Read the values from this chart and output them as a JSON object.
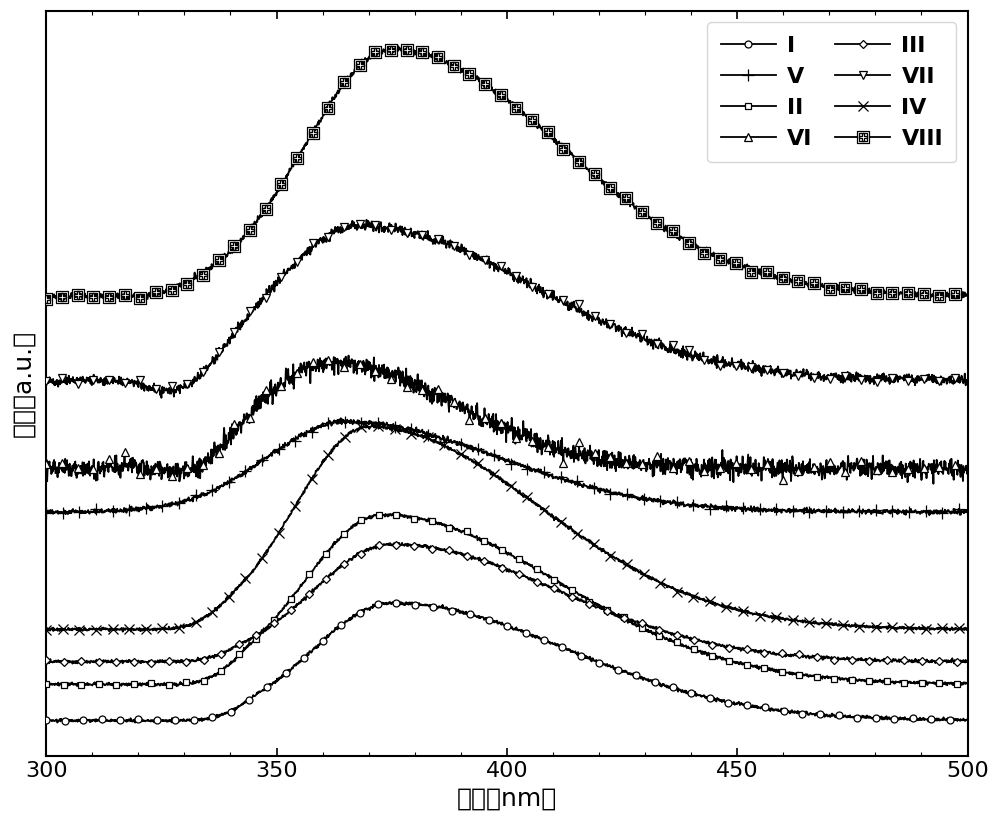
{
  "xlabel": "波长（nm）",
  "ylabel": "荧光（a.u.）",
  "xlim": [
    300,
    500
  ],
  "xticklabels": [
    "300",
    "350",
    "400",
    "450",
    "500"
  ],
  "legend_entries": [
    {
      "label": "I",
      "marker": "o",
      "col": 0
    },
    {
      "label": "II",
      "marker": "s",
      "col": 0
    },
    {
      "label": "III",
      "marker": "D",
      "col": 0
    },
    {
      "label": "IV",
      "marker": "x",
      "col": 0
    },
    {
      "label": "V",
      "marker": "+",
      "col": 1
    },
    {
      "label": "VI",
      "marker": "^",
      "col": 1
    },
    {
      "label": "VII",
      "marker": "v",
      "col": 1
    },
    {
      "label": "VIII",
      "marker": "H",
      "col": 1
    }
  ]
}
